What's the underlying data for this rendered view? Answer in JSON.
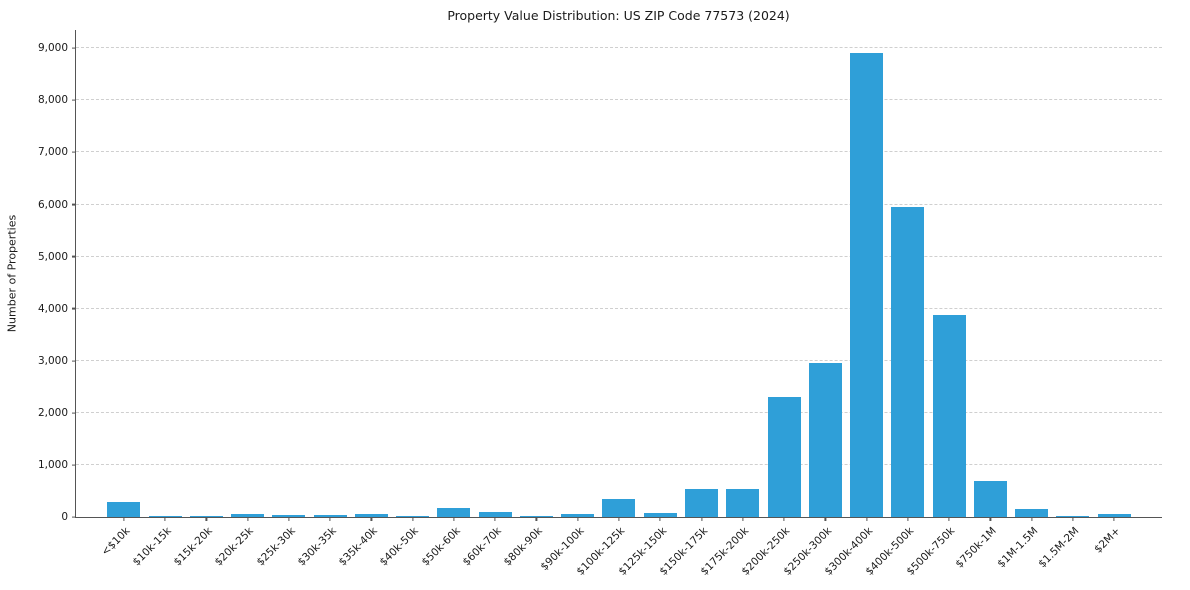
{
  "chart_data": {
    "type": "bar",
    "title": "Property Value Distribution: US ZIP Code 77573 (2024)",
    "xlabel": "",
    "ylabel": "Number of Properties",
    "categories": [
      "<$10k",
      "$10k-15k",
      "$15k-20k",
      "$20k-25k",
      "$25k-30k",
      "$30k-35k",
      "$35k-40k",
      "$40k-50k",
      "$50k-60k",
      "$60k-70k",
      "$80k-90k",
      "$90k-100k",
      "$100k-125k",
      "$125k-150k",
      "$150k-175k",
      "$175k-200k",
      "$200k-250k",
      "$250k-300k",
      "$300k-400k",
      "$400k-500k",
      "$500k-750k",
      "$750k-1M",
      "$1M-1.5M",
      "$1.5M-2M",
      "$2M+"
    ],
    "values": [
      280,
      25,
      5,
      60,
      45,
      45,
      60,
      25,
      180,
      95,
      10,
      50,
      350,
      85,
      530,
      530,
      2300,
      2960,
      8900,
      5950,
      3870,
      700,
      150,
      25,
      60
    ],
    "ylim": [
      0,
      9350
    ],
    "yticks": {
      "min": 0,
      "max": 9000,
      "step": 1000
    },
    "grid": "horizontal-dashed",
    "legend": "none",
    "colors": {
      "bar": "#2f9fd8",
      "grid": "#cfcfcf",
      "spine": "#555555",
      "text": "#1a1a1a",
      "background": "#ffffff"
    }
  }
}
